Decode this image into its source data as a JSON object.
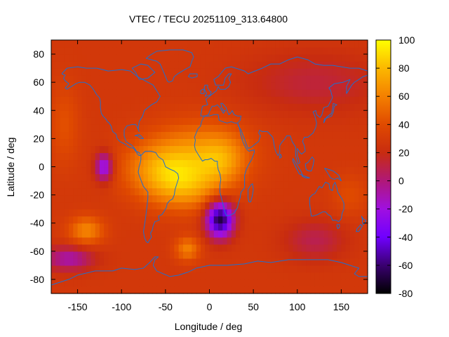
{
  "chart_data": {
    "type": "heatmap",
    "title": "VTEC / TECU 20251109_313.64800",
    "xlabel": "Longitude / deg",
    "ylabel": "Latitude / deg",
    "xlim": [
      -180,
      180
    ],
    "ylim": [
      -90,
      90
    ],
    "x_ticks": [
      -150,
      -100,
      -50,
      0,
      50,
      100,
      150
    ],
    "y_ticks": [
      -80,
      -60,
      -40,
      -20,
      0,
      20,
      40,
      60,
      80
    ],
    "colorbar": {
      "range": [
        -80,
        100
      ],
      "ticks": [
        -80,
        -60,
        -40,
        -20,
        0,
        20,
        40,
        60,
        80,
        100
      ],
      "stops": [
        {
          "value": -80,
          "color": "#000000"
        },
        {
          "value": -60,
          "color": "#3a0070"
        },
        {
          "value": -40,
          "color": "#7000ff"
        },
        {
          "value": -20,
          "color": "#a010e0"
        },
        {
          "value": 0,
          "color": "#b01878"
        },
        {
          "value": 20,
          "color": "#c82c10"
        },
        {
          "value": 40,
          "color": "#e04a00"
        },
        {
          "value": 60,
          "color": "#f48000"
        },
        {
          "value": 80,
          "color": "#fcb800"
        },
        {
          "value": 100,
          "color": "#ffff00"
        }
      ]
    },
    "background_value": 28,
    "features": [
      {
        "lon": -10,
        "lat": 10,
        "value": 60,
        "sigma_lon": 38,
        "sigma_lat": 16
      },
      {
        "lon": -55,
        "lat": -2,
        "value": 65,
        "sigma_lon": 30,
        "sigma_lat": 14
      },
      {
        "lon": -25,
        "lat": -15,
        "value": 58,
        "sigma_lon": 28,
        "sigma_lat": 12
      },
      {
        "lon": 15,
        "lat": 5,
        "value": 52,
        "sigma_lon": 18,
        "sigma_lat": 12
      },
      {
        "lon": -120,
        "lat": 0,
        "value": -28,
        "sigma_lon": 7,
        "sigma_lat": 7
      },
      {
        "lon": 12,
        "lat": -37,
        "value": -70,
        "sigma_lon": 11,
        "sigma_lat": 9
      },
      {
        "lon": -140,
        "lat": -45,
        "value": 62,
        "sigma_lon": 14,
        "sigma_lat": 7
      },
      {
        "lon": -25,
        "lat": -58,
        "value": 60,
        "sigma_lon": 10,
        "sigma_lat": 6
      },
      {
        "lon": -160,
        "lat": -65,
        "value": -10,
        "sigma_lon": 20,
        "sigma_lat": 6
      },
      {
        "lon": 120,
        "lat": -52,
        "value": 8,
        "sigma_lon": 25,
        "sigma_lat": 10
      },
      {
        "lon": 120,
        "lat": 60,
        "value": 12,
        "sigma_lon": 55,
        "sigma_lat": 15
      },
      {
        "lon": -165,
        "lat": 30,
        "value": 42,
        "sigma_lon": 12,
        "sigma_lat": 20
      },
      {
        "lon": 160,
        "lat": -20,
        "value": 40,
        "sigma_lon": 14,
        "sigma_lat": 10
      }
    ],
    "coastlines": "world outline overlay (stroke #1f6fd0)",
    "coastline_color": "#1f6fd0"
  }
}
